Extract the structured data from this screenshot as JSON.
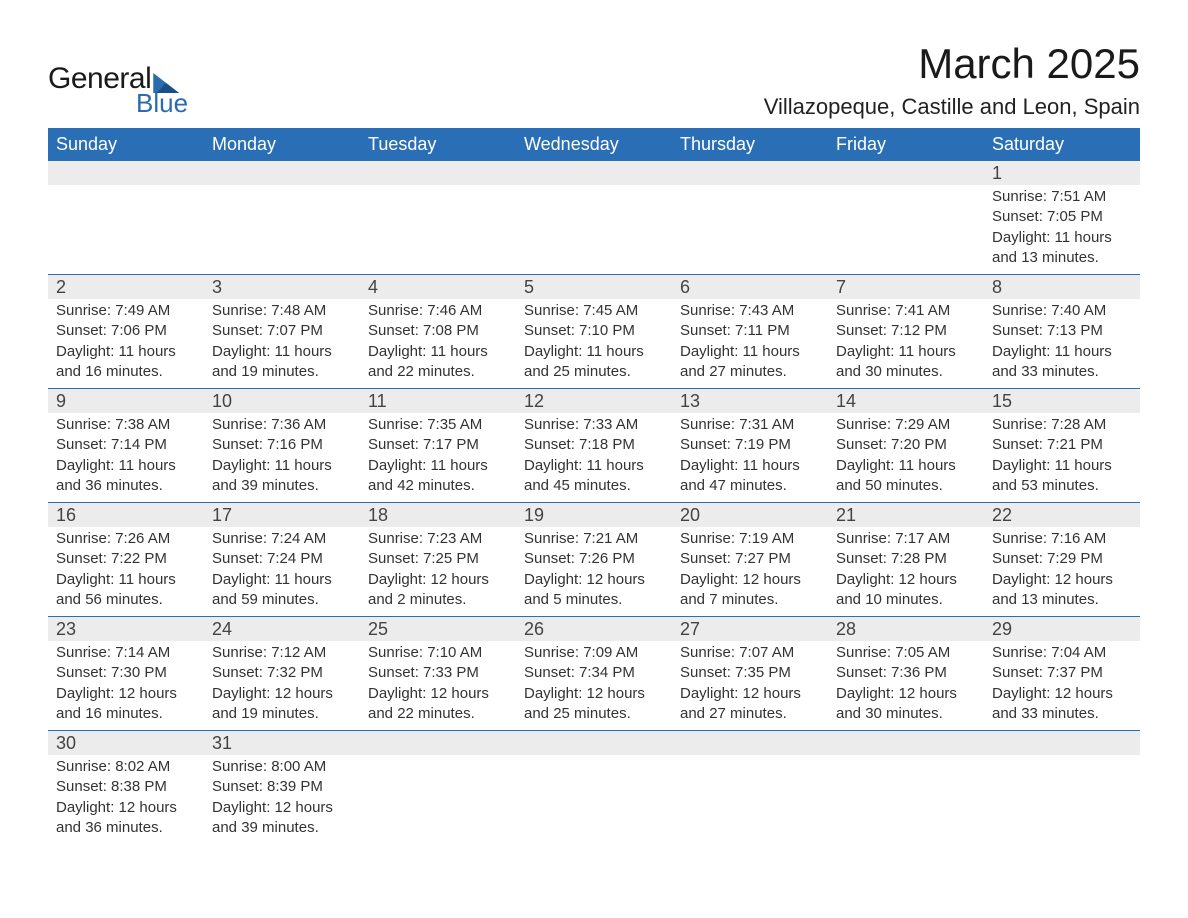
{
  "brand": {
    "name1": "General",
    "name2": "Blue",
    "accent": "#2b6cb0"
  },
  "title": "March 2025",
  "location": "Villazopeque, Castille and Leon, Spain",
  "colors": {
    "header_bg": "#2a6fb5",
    "header_text": "#ffffff",
    "daynum_bg": "#ececec",
    "row_border": "#2a6fb5",
    "text": "#333333",
    "page_bg": "#ffffff"
  },
  "font": {
    "family": "Arial",
    "title_size_pt": 32,
    "location_size_pt": 16,
    "header_size_pt": 13,
    "daynum_size_pt": 13,
    "body_size_pt": 11
  },
  "weekdays": [
    "Sunday",
    "Monday",
    "Tuesday",
    "Wednesday",
    "Thursday",
    "Friday",
    "Saturday"
  ],
  "weeks": [
    [
      null,
      null,
      null,
      null,
      null,
      null,
      {
        "n": "1",
        "sr": "Sunrise: 7:51 AM",
        "ss": "Sunset: 7:05 PM",
        "dl": "Daylight: 11 hours and 13 minutes."
      }
    ],
    [
      {
        "n": "2",
        "sr": "Sunrise: 7:49 AM",
        "ss": "Sunset: 7:06 PM",
        "dl": "Daylight: 11 hours and 16 minutes."
      },
      {
        "n": "3",
        "sr": "Sunrise: 7:48 AM",
        "ss": "Sunset: 7:07 PM",
        "dl": "Daylight: 11 hours and 19 minutes."
      },
      {
        "n": "4",
        "sr": "Sunrise: 7:46 AM",
        "ss": "Sunset: 7:08 PM",
        "dl": "Daylight: 11 hours and 22 minutes."
      },
      {
        "n": "5",
        "sr": "Sunrise: 7:45 AM",
        "ss": "Sunset: 7:10 PM",
        "dl": "Daylight: 11 hours and 25 minutes."
      },
      {
        "n": "6",
        "sr": "Sunrise: 7:43 AM",
        "ss": "Sunset: 7:11 PM",
        "dl": "Daylight: 11 hours and 27 minutes."
      },
      {
        "n": "7",
        "sr": "Sunrise: 7:41 AM",
        "ss": "Sunset: 7:12 PM",
        "dl": "Daylight: 11 hours and 30 minutes."
      },
      {
        "n": "8",
        "sr": "Sunrise: 7:40 AM",
        "ss": "Sunset: 7:13 PM",
        "dl": "Daylight: 11 hours and 33 minutes."
      }
    ],
    [
      {
        "n": "9",
        "sr": "Sunrise: 7:38 AM",
        "ss": "Sunset: 7:14 PM",
        "dl": "Daylight: 11 hours and 36 minutes."
      },
      {
        "n": "10",
        "sr": "Sunrise: 7:36 AM",
        "ss": "Sunset: 7:16 PM",
        "dl": "Daylight: 11 hours and 39 minutes."
      },
      {
        "n": "11",
        "sr": "Sunrise: 7:35 AM",
        "ss": "Sunset: 7:17 PM",
        "dl": "Daylight: 11 hours and 42 minutes."
      },
      {
        "n": "12",
        "sr": "Sunrise: 7:33 AM",
        "ss": "Sunset: 7:18 PM",
        "dl": "Daylight: 11 hours and 45 minutes."
      },
      {
        "n": "13",
        "sr": "Sunrise: 7:31 AM",
        "ss": "Sunset: 7:19 PM",
        "dl": "Daylight: 11 hours and 47 minutes."
      },
      {
        "n": "14",
        "sr": "Sunrise: 7:29 AM",
        "ss": "Sunset: 7:20 PM",
        "dl": "Daylight: 11 hours and 50 minutes."
      },
      {
        "n": "15",
        "sr": "Sunrise: 7:28 AM",
        "ss": "Sunset: 7:21 PM",
        "dl": "Daylight: 11 hours and 53 minutes."
      }
    ],
    [
      {
        "n": "16",
        "sr": "Sunrise: 7:26 AM",
        "ss": "Sunset: 7:22 PM",
        "dl": "Daylight: 11 hours and 56 minutes."
      },
      {
        "n": "17",
        "sr": "Sunrise: 7:24 AM",
        "ss": "Sunset: 7:24 PM",
        "dl": "Daylight: 11 hours and 59 minutes."
      },
      {
        "n": "18",
        "sr": "Sunrise: 7:23 AM",
        "ss": "Sunset: 7:25 PM",
        "dl": "Daylight: 12 hours and 2 minutes."
      },
      {
        "n": "19",
        "sr": "Sunrise: 7:21 AM",
        "ss": "Sunset: 7:26 PM",
        "dl": "Daylight: 12 hours and 5 minutes."
      },
      {
        "n": "20",
        "sr": "Sunrise: 7:19 AM",
        "ss": "Sunset: 7:27 PM",
        "dl": "Daylight: 12 hours and 7 minutes."
      },
      {
        "n": "21",
        "sr": "Sunrise: 7:17 AM",
        "ss": "Sunset: 7:28 PM",
        "dl": "Daylight: 12 hours and 10 minutes."
      },
      {
        "n": "22",
        "sr": "Sunrise: 7:16 AM",
        "ss": "Sunset: 7:29 PM",
        "dl": "Daylight: 12 hours and 13 minutes."
      }
    ],
    [
      {
        "n": "23",
        "sr": "Sunrise: 7:14 AM",
        "ss": "Sunset: 7:30 PM",
        "dl": "Daylight: 12 hours and 16 minutes."
      },
      {
        "n": "24",
        "sr": "Sunrise: 7:12 AM",
        "ss": "Sunset: 7:32 PM",
        "dl": "Daylight: 12 hours and 19 minutes."
      },
      {
        "n": "25",
        "sr": "Sunrise: 7:10 AM",
        "ss": "Sunset: 7:33 PM",
        "dl": "Daylight: 12 hours and 22 minutes."
      },
      {
        "n": "26",
        "sr": "Sunrise: 7:09 AM",
        "ss": "Sunset: 7:34 PM",
        "dl": "Daylight: 12 hours and 25 minutes."
      },
      {
        "n": "27",
        "sr": "Sunrise: 7:07 AM",
        "ss": "Sunset: 7:35 PM",
        "dl": "Daylight: 12 hours and 27 minutes."
      },
      {
        "n": "28",
        "sr": "Sunrise: 7:05 AM",
        "ss": "Sunset: 7:36 PM",
        "dl": "Daylight: 12 hours and 30 minutes."
      },
      {
        "n": "29",
        "sr": "Sunrise: 7:04 AM",
        "ss": "Sunset: 7:37 PM",
        "dl": "Daylight: 12 hours and 33 minutes."
      }
    ],
    [
      {
        "n": "30",
        "sr": "Sunrise: 8:02 AM",
        "ss": "Sunset: 8:38 PM",
        "dl": "Daylight: 12 hours and 36 minutes."
      },
      {
        "n": "31",
        "sr": "Sunrise: 8:00 AM",
        "ss": "Sunset: 8:39 PM",
        "dl": "Daylight: 12 hours and 39 minutes."
      },
      null,
      null,
      null,
      null,
      null
    ]
  ]
}
